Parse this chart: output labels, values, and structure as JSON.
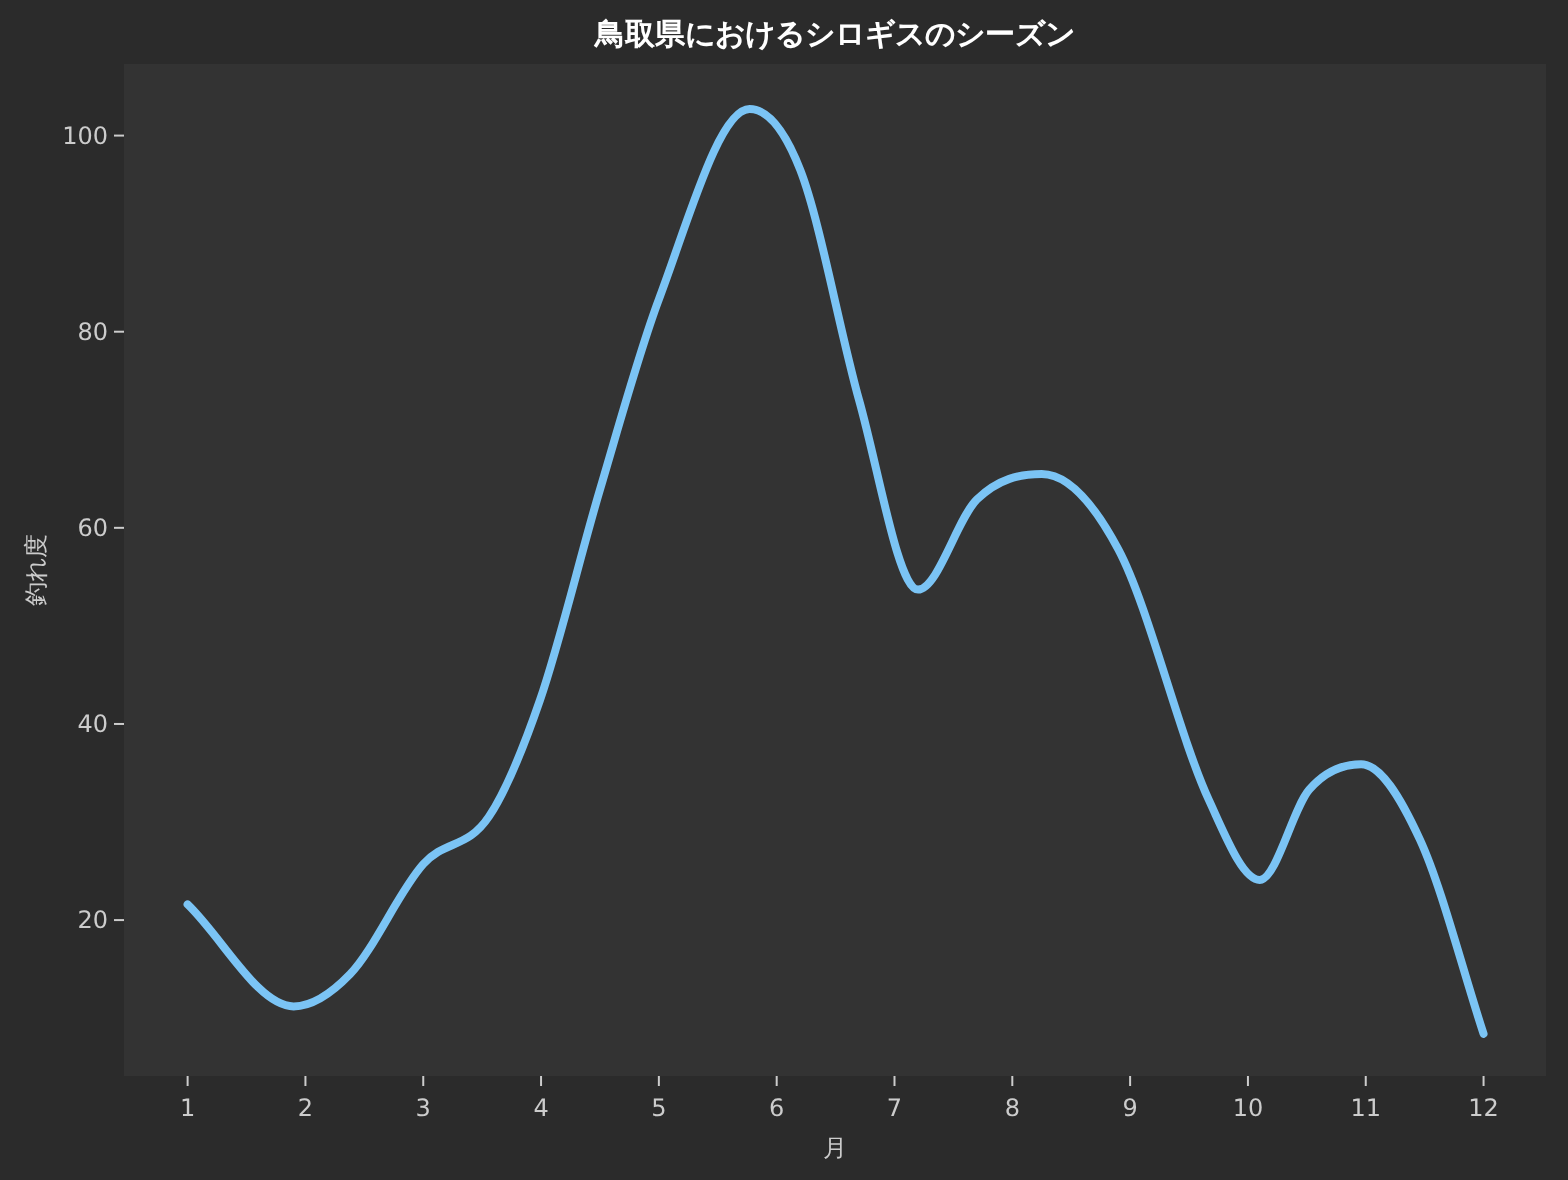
{
  "chart_data": {
    "type": "line",
    "title": "鳥取県におけるシロギスのシーズン",
    "xlabel": "月",
    "ylabel": "釣れ度",
    "xlim": [
      0.46,
      12.53
    ],
    "ylim": [
      4.1,
      107.3
    ],
    "xticks": [
      1,
      2,
      3,
      4,
      5,
      6,
      7,
      8,
      9,
      10,
      11,
      12
    ],
    "yticks": [
      20,
      40,
      60,
      80,
      100
    ],
    "grid": false,
    "marker": "none",
    "line_style": "solid",
    "series": [
      {
        "color": "#7bc4f5",
        "x": [
          1,
          1.9,
          2.38,
          3.0,
          3.56,
          3.99,
          4.5,
          5.0,
          5.77,
          6.2,
          6.7,
          7.2,
          7.7,
          8.25,
          8.9,
          9.67,
          10.1,
          10.52,
          10.96,
          11.46,
          12
        ],
        "values": [
          21.6,
          11.2,
          14.5,
          25.7,
          30.6,
          42.4,
          63.9,
          83.3,
          102.7,
          96.5,
          73,
          53.7,
          62.9,
          65.5,
          57.8,
          32.2,
          24.1,
          33.3,
          35.9,
          28.2,
          8.4
        ]
      }
    ]
  }
}
